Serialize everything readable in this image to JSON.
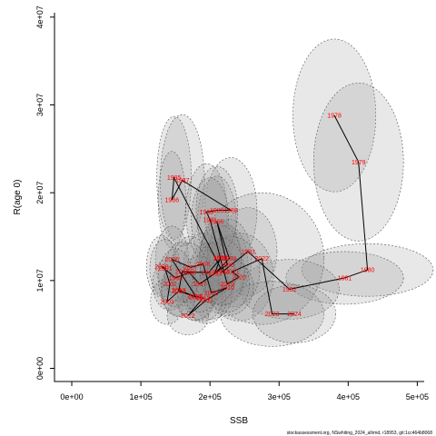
{
  "chart_data": {
    "type": "scatter",
    "title": "",
    "xlabel": "SSB",
    "ylabel": "R(age 0)",
    "xlim": [
      -25000,
      510000
    ],
    "ylim": [
      -1500000,
      40500000
    ],
    "x_ticks": [
      {
        "value": 0,
        "label": "0e+00"
      },
      {
        "value": 100000,
        "label": "1e+05"
      },
      {
        "value": 200000,
        "label": "2e+05"
      },
      {
        "value": 300000,
        "label": "3e+05"
      },
      {
        "value": 400000,
        "label": "4e+05"
      },
      {
        "value": 500000,
        "label": "5e+05"
      }
    ],
    "y_ticks": [
      {
        "value": 0,
        "label": "0e+00"
      },
      {
        "value": 10000000,
        "label": "1e+07"
      },
      {
        "value": 20000000,
        "label": "2e+07"
      },
      {
        "value": 30000000,
        "label": "3e+07"
      },
      {
        "value": 40000000,
        "label": "4e+07"
      }
    ],
    "points": [
      {
        "year": "1978",
        "x": 380000,
        "y": 28800000
      },
      {
        "year": "1979",
        "x": 415000,
        "y": 23500000
      },
      {
        "year": "1980",
        "x": 428000,
        "y": 11200000
      },
      {
        "year": "1981",
        "x": 395000,
        "y": 10300000
      },
      {
        "year": "1982",
        "x": 315000,
        "y": 9000000
      },
      {
        "year": "1983",
        "x": 255000,
        "y": 13300000
      },
      {
        "year": "1984",
        "x": 218000,
        "y": 11000000
      },
      {
        "year": "1985",
        "x": 148000,
        "y": 21700000
      },
      {
        "year": "1986",
        "x": 145000,
        "y": 19200000
      },
      {
        "year": "1987",
        "x": 160000,
        "y": 21400000
      },
      {
        "year": "1988",
        "x": 230000,
        "y": 18000000
      },
      {
        "year": "1989",
        "x": 210000,
        "y": 18000000
      },
      {
        "year": "1990",
        "x": 195000,
        "y": 17800000
      },
      {
        "year": "1991",
        "x": 200000,
        "y": 16900000
      },
      {
        "year": "1992",
        "x": 215000,
        "y": 12600000
      },
      {
        "year": "1993",
        "x": 207000,
        "y": 10800000
      },
      {
        "year": "1994",
        "x": 228000,
        "y": 12500000
      },
      {
        "year": "1995",
        "x": 210000,
        "y": 16700000
      },
      {
        "year": "1996",
        "x": 225000,
        "y": 11800000
      },
      {
        "year": "1997",
        "x": 185000,
        "y": 9600000
      },
      {
        "year": "1998",
        "x": 170000,
        "y": 10900000
      },
      {
        "year": "1999",
        "x": 150000,
        "y": 10300000
      },
      {
        "year": "2000",
        "x": 130000,
        "y": 11600000
      },
      {
        "year": "2001",
        "x": 135000,
        "y": 11400000
      },
      {
        "year": "2002",
        "x": 142000,
        "y": 9600000
      },
      {
        "year": "2003",
        "x": 138000,
        "y": 7600000
      },
      {
        "year": "2004",
        "x": 155000,
        "y": 8800000
      },
      {
        "year": "2005",
        "x": 180000,
        "y": 8100000
      },
      {
        "year": "2006",
        "x": 145000,
        "y": 12400000
      },
      {
        "year": "2007",
        "x": 172000,
        "y": 11500000
      },
      {
        "year": "2008",
        "x": 190000,
        "y": 11900000
      },
      {
        "year": "2009",
        "x": 202000,
        "y": 8600000
      },
      {
        "year": "2010",
        "x": 225000,
        "y": 9200000
      },
      {
        "year": "2011",
        "x": 195000,
        "y": 7800000
      },
      {
        "year": "2012",
        "x": 168000,
        "y": 6000000
      },
      {
        "year": "2013",
        "x": 190000,
        "y": 8000000
      },
      {
        "year": "2014",
        "x": 178000,
        "y": 8200000
      },
      {
        "year": "2015",
        "x": 155000,
        "y": 8900000
      },
      {
        "year": "2016",
        "x": 160000,
        "y": 11000000
      },
      {
        "year": "2017",
        "x": 198000,
        "y": 10900000
      },
      {
        "year": "2018",
        "x": 215000,
        "y": 12500000
      },
      {
        "year": "2019",
        "x": 225000,
        "y": 9600000
      },
      {
        "year": "2020",
        "x": 242000,
        "y": 10400000
      },
      {
        "year": "2021",
        "x": 232000,
        "y": 11000000
      },
      {
        "year": "2022",
        "x": 275000,
        "y": 12500000
      },
      {
        "year": "2023",
        "x": 290000,
        "y": 6200000
      },
      {
        "year": "2024",
        "x": 322000,
        "y": 6200000
      }
    ],
    "ellipses": [
      {
        "year": "1978",
        "rx": 60000,
        "ry": 8700000
      },
      {
        "year": "1979",
        "rx": 65000,
        "ry": 9000000
      },
      {
        "year": "1980",
        "rx": 95000,
        "ry": 3000000
      },
      {
        "year": "1981",
        "rx": 85000,
        "ry": 3000000
      },
      {
        "year": "1982",
        "rx": 72000,
        "ry": 3400000
      },
      {
        "year": "1983",
        "rx": 42000,
        "ry": 5000000
      },
      {
        "year": "1985",
        "rx": 25000,
        "ry": 7000000
      },
      {
        "year": "1987",
        "rx": 32000,
        "ry": 7500000
      },
      {
        "year": "1986",
        "rx": 20000,
        "ry": 5500000
      },
      {
        "year": "1988",
        "rx": 38000,
        "ry": 6000000
      },
      {
        "year": "1990",
        "rx": 30000,
        "ry": 5500000
      },
      {
        "year": "1995",
        "rx": 28000,
        "ry": 5200000
      },
      {
        "year": "1991",
        "rx": 27000,
        "ry": 4800000
      },
      {
        "year": "1992",
        "rx": 30000,
        "ry": 4200000
      },
      {
        "year": "1994",
        "rx": 32000,
        "ry": 4500000
      },
      {
        "year": "1996",
        "rx": 30000,
        "ry": 4500000
      },
      {
        "year": "2020",
        "rx": 50000,
        "ry": 5000000
      },
      {
        "year": "2022",
        "rx": 90000,
        "ry": 7500000
      },
      {
        "year": "2021",
        "rx": 40000,
        "ry": 4000000
      },
      {
        "year": "2023",
        "rx": 75000,
        "ry": 3700000
      },
      {
        "year": "2024",
        "rx": 60000,
        "ry": 3300000
      },
      {
        "year": "2010",
        "rx": 38000,
        "ry": 3200000
      },
      {
        "year": "2006",
        "rx": 24000,
        "ry": 3800000
      },
      {
        "year": "2000",
        "rx": 22000,
        "ry": 3500000
      },
      {
        "year": "2001",
        "rx": 22000,
        "ry": 3300000
      },
      {
        "year": "2002",
        "rx": 25000,
        "ry": 3000000
      },
      {
        "year": "2003",
        "rx": 24000,
        "ry": 2600000
      },
      {
        "year": "2004",
        "rx": 25000,
        "ry": 2800000
      },
      {
        "year": "2005",
        "rx": 27000,
        "ry": 2700000
      },
      {
        "year": "2007",
        "rx": 28000,
        "ry": 3500000
      },
      {
        "year": "2008",
        "rx": 28000,
        "ry": 3500000
      },
      {
        "year": "2009",
        "rx": 30000,
        "ry": 3000000
      },
      {
        "year": "2011",
        "rx": 28000,
        "ry": 2700000
      },
      {
        "year": "2012",
        "rx": 30000,
        "ry": 2200000
      },
      {
        "year": "2013",
        "rx": 28000,
        "ry": 2600000
      },
      {
        "year": "2014",
        "rx": 28000,
        "ry": 2700000
      },
      {
        "year": "2015",
        "rx": 26000,
        "ry": 3000000
      },
      {
        "year": "2016",
        "rx": 26000,
        "ry": 3400000
      },
      {
        "year": "2017",
        "rx": 28000,
        "ry": 3400000
      },
      {
        "year": "2018",
        "rx": 30000,
        "ry": 3800000
      },
      {
        "year": "2019",
        "rx": 32000,
        "ry": 3200000
      },
      {
        "year": "1997",
        "rx": 28000,
        "ry": 3200000
      },
      {
        "year": "1998",
        "rx": 27000,
        "ry": 3400000
      },
      {
        "year": "1999",
        "rx": 25000,
        "ry": 3300000
      },
      {
        "year": "1993",
        "rx": 30000,
        "ry": 3500000
      },
      {
        "year": "1984",
        "rx": 32000,
        "ry": 3800000
      },
      {
        "year": "1989",
        "rx": 30000,
        "ry": 5000000
      }
    ],
    "grid": false,
    "legend": "none",
    "colors": {
      "labels": "#ff0000",
      "ellipse_fill": "#8c8c8c",
      "line": "#000000"
    },
    "footer": "stockassessment.org, NSwhiting_2024_allrmd, r18953, git:1cc464b8068"
  }
}
